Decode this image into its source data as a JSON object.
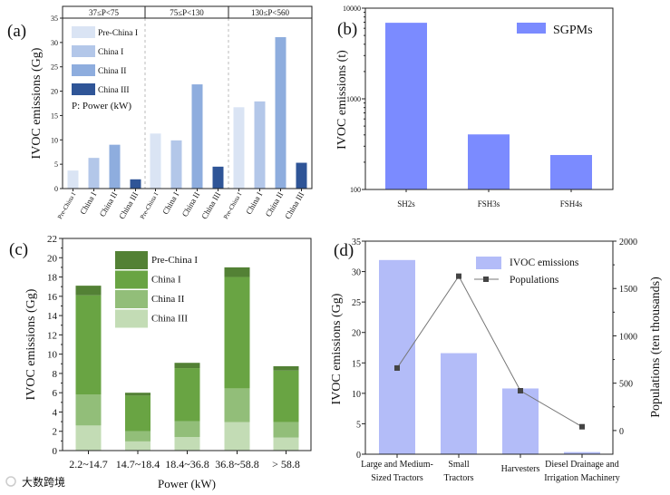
{
  "watermark": "大数跨境",
  "chart_data": [
    {
      "panel": "(a)",
      "type": "bar",
      "ylabel": "IVOC emissions (Gg)",
      "ylim": [
        0,
        35
      ],
      "yticks": [
        0,
        5,
        10,
        15,
        20,
        25,
        30,
        35
      ],
      "groups": [
        "37≤P<75",
        "75≤P<130",
        "130≤P<560"
      ],
      "categories": [
        "Pre-China I",
        "China I",
        "China II",
        "China III"
      ],
      "series": [
        {
          "group": "37≤P<75",
          "values": [
            3.7,
            6.3,
            9.0,
            1.9
          ]
        },
        {
          "group": "75≤P<130",
          "values": [
            11.3,
            9.9,
            21.4,
            4.5
          ]
        },
        {
          "group": "130≤P<560",
          "values": [
            16.7,
            17.9,
            31.1,
            5.3
          ]
        }
      ],
      "colors": [
        "#dae4f4",
        "#b3c7e9",
        "#8eadde",
        "#2f5597"
      ],
      "legend": [
        "Pre-China I",
        "China I",
        "China II",
        "China III"
      ],
      "annotation": "P: Power (kW)",
      "legend_position": "top-left"
    },
    {
      "panel": "(b)",
      "type": "bar",
      "yscale": "log",
      "ylabel": "IVOC emissions (t)",
      "ylim": [
        100,
        10000
      ],
      "yticks": [
        "100",
        "1000",
        "10000"
      ],
      "categories": [
        "SH2s",
        "FSH3s",
        "FSH4s"
      ],
      "values": [
        6900,
        405,
        240
      ],
      "legend": [
        "SGPMs"
      ],
      "color": "#7b8bff",
      "legend_position": "top-right"
    },
    {
      "panel": "(c)",
      "type": "bar",
      "stacked": true,
      "xlabel": "Power (kW)",
      "ylabel": "IVOC emissions (Gg)",
      "ylim": [
        0,
        22
      ],
      "yticks": [
        0,
        2,
        4,
        6,
        8,
        10,
        12,
        14,
        16,
        18,
        20,
        22
      ],
      "categories": [
        "2.2~14.7",
        "14.7~18.4",
        "18.4~36.8",
        "36.8~58.8",
        "> 58.8"
      ],
      "series": [
        {
          "name": "China III",
          "values": [
            2.6,
            0.95,
            1.4,
            2.95,
            1.35
          ],
          "color": "#c3dcb5"
        },
        {
          "name": "China II",
          "values": [
            3.2,
            1.05,
            1.65,
            3.5,
            1.6
          ],
          "color": "#92be79"
        },
        {
          "name": "China I",
          "values": [
            10.3,
            3.7,
            5.5,
            11.55,
            5.35
          ],
          "color": "#69a443"
        },
        {
          "name": "Pre-China I",
          "values": [
            1.0,
            0.3,
            0.55,
            1.0,
            0.45
          ],
          "color": "#538135"
        }
      ],
      "legend": [
        "Pre-China I",
        "China I",
        "China II",
        "China III"
      ],
      "legend_position": "top-center"
    },
    {
      "panel": "(d)",
      "type": "bar+line",
      "ylabel": "IVOC emissions (Gg)",
      "y2label": "Populations  (ten thousands)",
      "ylim": [
        0,
        35
      ],
      "y2lim": [
        -250,
        2000
      ],
      "yticks": [
        0,
        5,
        10,
        15,
        20,
        25,
        30,
        35
      ],
      "y2ticks": [
        0,
        500,
        1000,
        1500,
        2000
      ],
      "categories": [
        [
          "Large and Medium-",
          "Sized Tractors"
        ],
        [
          "Small",
          "Tractors"
        ],
        [
          "Harvesters"
        ],
        [
          "Diesel Drainage and",
          "Irrigation Machinery"
        ]
      ],
      "series": [
        {
          "name": "IVOC emissions",
          "type": "bar",
          "values": [
            31.9,
            16.6,
            10.8,
            0.35
          ],
          "color": "#b3bcf8"
        },
        {
          "name": "Populations",
          "type": "line",
          "values": [
            660,
            1630,
            420,
            40
          ],
          "color": "#777777",
          "marker_color": "#444444"
        }
      ],
      "legend_position": "top-right"
    }
  ]
}
